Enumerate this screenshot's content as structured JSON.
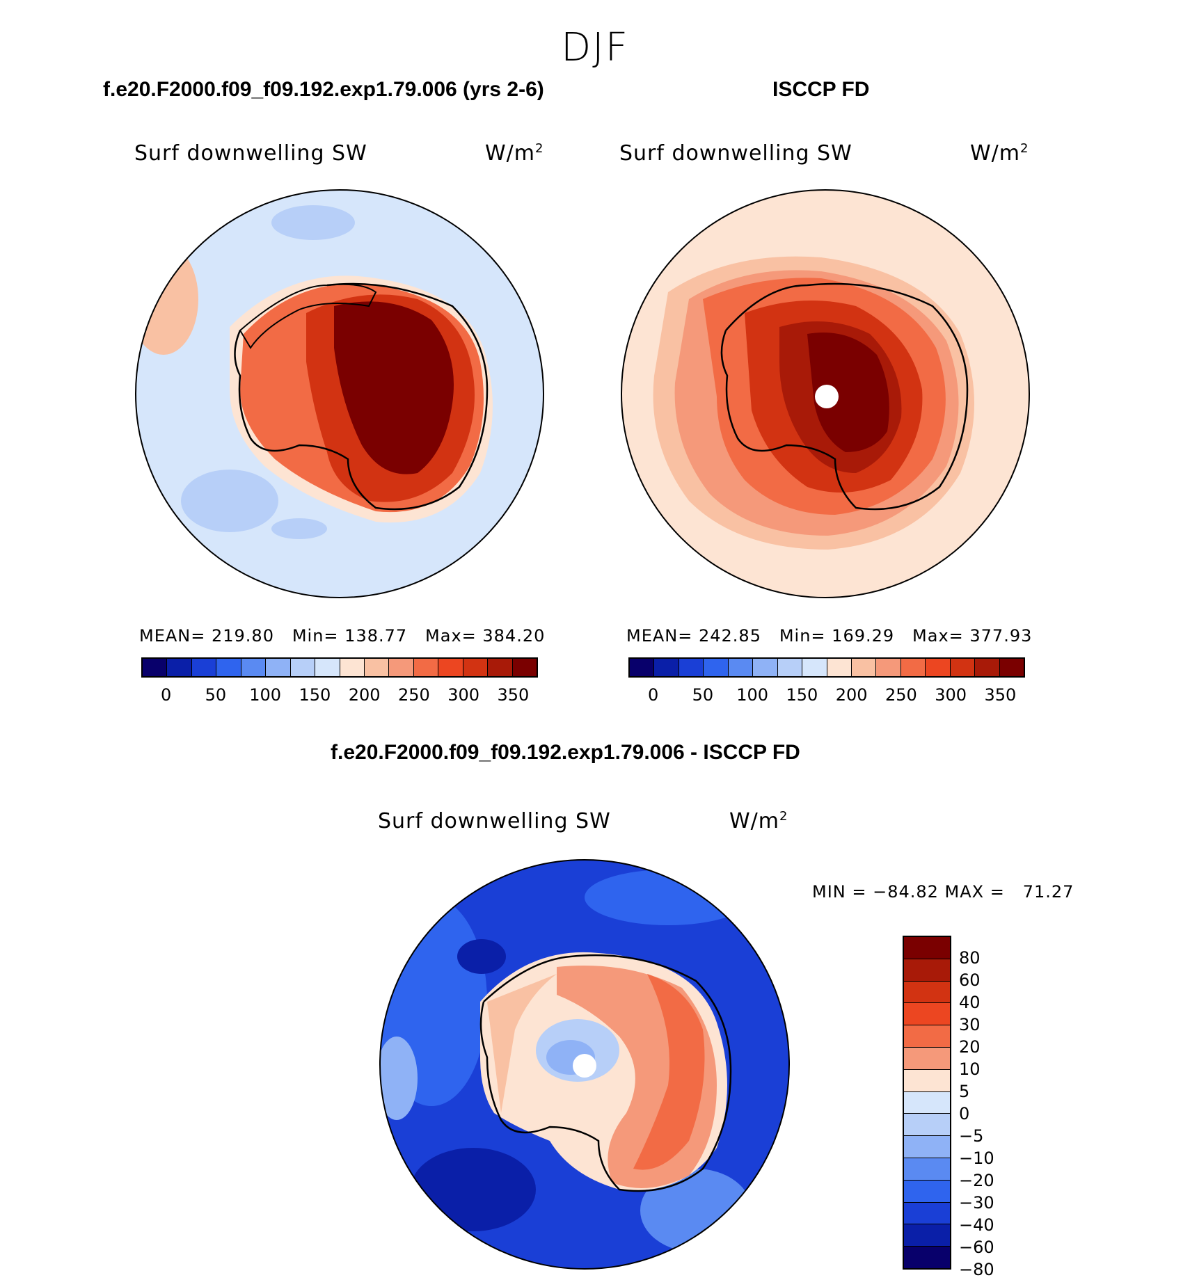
{
  "page_title": "DJF",
  "panels": [
    {
      "title": "f.e20.F2000.f09_f09.192.exp1.79.006 (yrs 2-6)",
      "variable_label": "Surf downwelling SW",
      "units": "W/m",
      "units_exp": "2",
      "stats": "MEAN= 219.80   Min= 138.77   Max= 384.20",
      "colorbar_ticks": [
        "0",
        "50",
        "100",
        "150",
        "200",
        "250",
        "300",
        "350"
      ]
    },
    {
      "title": "ISCCP FD",
      "variable_label": "Surf downwelling SW",
      "units": "W/m",
      "units_exp": "2",
      "stats": "MEAN= 242.85   Min= 169.29   Max= 377.93",
      "colorbar_ticks": [
        "0",
        "50",
        "100",
        "150",
        "200",
        "250",
        "300",
        "350"
      ]
    },
    {
      "title": "f.e20.F2000.f09_f09.192.exp1.79.006 - ISCCP FD",
      "variable_label": "Surf downwelling SW",
      "units": "W/m",
      "units_exp": "2",
      "stats": "MIN = −84.82 MAX =   71.27",
      "colorbar_ticks": [
        "80",
        "60",
        "40",
        "30",
        "20",
        "10",
        "5",
        "0",
        "−5",
        "−10",
        "−20",
        "−30",
        "−40",
        "−60",
        "−80"
      ]
    }
  ],
  "colors": {
    "abs_scale": [
      "#08006b",
      "#0a1fa8",
      "#1a3fd6",
      "#2f64ee",
      "#5a8af2",
      "#8fb2f6",
      "#b7cff8",
      "#d6e6fb",
      "#fde4d3",
      "#f9c1a3",
      "#f5997a",
      "#f26b45",
      "#ec4621",
      "#d23312",
      "#a81a08",
      "#7a0000"
    ],
    "diff_scale": [
      "#7a0000",
      "#a81a08",
      "#d23312",
      "#ec4621",
      "#f26b45",
      "#f5997a",
      "#fde4d3",
      "#d6e6fb",
      "#b7cff8",
      "#8fb2f6",
      "#5a8af2",
      "#2f64ee",
      "#1a3fd6",
      "#0a1fa8",
      "#08006b"
    ]
  }
}
